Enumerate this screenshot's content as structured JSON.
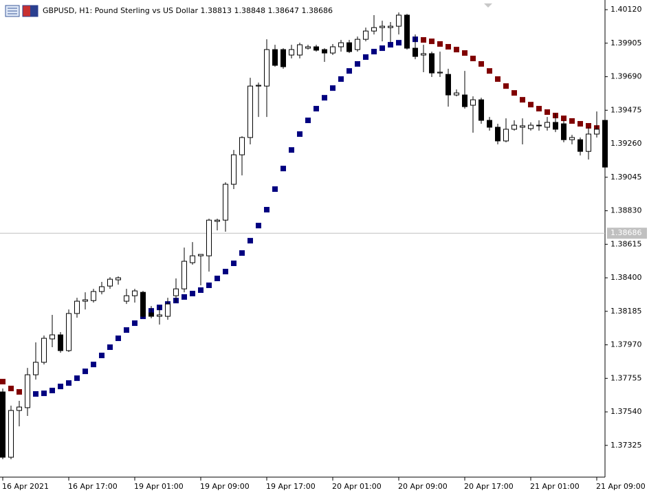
{
  "chart_data": {
    "type": "candlestick",
    "title": "GBPUSD, H1:  Pound Sterling vs US Dollar  1.38813 1.38848 1.38647 1.38686",
    "categories": [
      "16 Apr 2021",
      null,
      null,
      null,
      null,
      null,
      null,
      null,
      "16 Apr 17:00",
      null,
      null,
      null,
      null,
      null,
      null,
      null,
      "19 Apr 01:00",
      null,
      null,
      null,
      null,
      null,
      null,
      null,
      "19 Apr 09:00",
      null,
      null,
      null,
      null,
      null,
      null,
      null,
      "19 Apr 17:00",
      null,
      null,
      null,
      null,
      null,
      null,
      null,
      "20 Apr 01:00",
      null,
      null,
      null,
      null,
      null,
      null,
      null,
      "20 Apr 09:00",
      null,
      null,
      null,
      null,
      null,
      null,
      null,
      "20 Apr 17:00",
      null,
      null,
      null,
      null,
      null,
      null,
      null,
      "21 Apr 01:00",
      null,
      null,
      null,
      null,
      null,
      null,
      null,
      "21 Apr 09:00",
      null
    ],
    "open": [
      1.37668,
      1.37249,
      1.37549,
      1.37567,
      1.37778,
      1.37858,
      1.38008,
      1.38034,
      1.37933,
      1.38171,
      1.3825,
      1.38254,
      1.38312,
      1.38347,
      1.38387,
      1.3825,
      1.38285,
      1.38307,
      1.38175,
      1.38153,
      1.38153,
      1.38285,
      1.38329,
      1.38497,
      1.38541,
      1.38541,
      1.38762,
      1.3877,
      1.39,
      1.39189,
      1.393,
      1.3963,
      1.3963,
      1.39864,
      1.39864,
      1.39829,
      1.39829,
      1.39873,
      1.39882,
      1.39864,
      1.39842,
      1.39882,
      1.39908,
      1.39864,
      1.3993,
      1.39983,
      1.40005,
      1.40005,
      1.40014,
      1.40085,
      1.39873,
      1.39829,
      1.39838,
      1.39714,
      1.39705,
      1.39573,
      1.39573,
      1.39507,
      1.39542,
      1.3941,
      1.39366,
      1.39278,
      1.39353,
      1.39366,
      1.39357,
      1.39375,
      1.39366,
      1.39397,
      1.39388,
      1.39286,
      1.39286,
      1.39211,
      1.39322,
      1.3941
    ],
    "high": [
      1.3769,
      1.3758,
      1.37611,
      1.37822,
      1.37986,
      1.3803,
      1.38162,
      1.38052,
      1.38197,
      1.38272,
      1.38307,
      1.38329,
      1.38374,
      1.38404,
      1.38409,
      1.38329,
      1.38329,
      1.38316,
      1.38219,
      1.38219,
      1.38272,
      1.38396,
      1.38594,
      1.38629,
      1.3855,
      1.38779,
      1.38779,
      1.39013,
      1.3922,
      1.39308,
      1.39683,
      1.39652,
      1.3993,
      1.39895,
      1.39873,
      1.39895,
      1.39908,
      1.39895,
      1.39895,
      1.39873,
      1.399,
      1.39926,
      1.39926,
      1.39948,
      1.40005,
      1.40085,
      1.40049,
      1.40041,
      1.40102,
      1.40093,
      1.39961,
      1.39895,
      1.39851,
      1.39851,
      1.39741,
      1.39608,
      1.39727,
      1.39564,
      1.39555,
      1.39432,
      1.39388,
      1.39423,
      1.3941,
      1.39423,
      1.39397,
      1.3941,
      1.39432,
      1.39454,
      1.3941,
      1.39317,
      1.393,
      1.39366,
      1.39467,
      1.3941
    ],
    "low": [
      1.37236,
      1.37236,
      1.37447,
      1.37514,
      1.37747,
      1.37844,
      1.37955,
      1.37919,
      1.37924,
      1.38144,
      1.38197,
      1.38241,
      1.38294,
      1.38329,
      1.38356,
      1.38232,
      1.38241,
      1.38144,
      1.3814,
      1.381,
      1.38131,
      1.38241,
      1.38307,
      1.38484,
      1.38352,
      1.3844,
      1.38704,
      1.38696,
      1.38969,
      1.39057,
      1.39256,
      1.39432,
      1.39432,
      1.39754,
      1.39741,
      1.39807,
      1.39807,
      1.39864,
      1.39851,
      1.39785,
      1.39829,
      1.39851,
      1.39842,
      1.39851,
      1.39917,
      1.39961,
      1.39917,
      1.39908,
      1.39961,
      1.39864,
      1.39802,
      1.39719,
      1.39688,
      1.39688,
      1.39498,
      1.39564,
      1.39485,
      1.39331,
      1.39388,
      1.39344,
      1.39256,
      1.39269,
      1.39344,
      1.39256,
      1.39344,
      1.39344,
      1.39344,
      1.39335,
      1.39269,
      1.39256,
      1.39185,
      1.39159,
      1.393,
      1.3911
    ],
    "close": [
      1.37249,
      1.37549,
      1.37571,
      1.37778,
      1.37858,
      1.38012,
      1.38034,
      1.37933,
      1.38171,
      1.3825,
      1.38259,
      1.38312,
      1.38343,
      1.38391,
      1.384,
      1.38285,
      1.38316,
      1.38153,
      1.38153,
      1.38162,
      1.38232,
      1.38329,
      1.38506,
      1.38541,
      1.3855,
      1.3877,
      1.3877,
      1.39,
      1.39189,
      1.393,
      1.3963,
      1.39635,
      1.39864,
      1.39763,
      1.39754,
      1.39864,
      1.39895,
      1.39882,
      1.3986,
      1.39842,
      1.39882,
      1.39908,
      1.39851,
      1.3993,
      1.39983,
      1.40005,
      1.40014,
      1.40014,
      1.40085,
      1.39873,
      1.3982,
      1.39838,
      1.39714,
      1.39719,
      1.39573,
      1.39586,
      1.39498,
      1.39542,
      1.3941,
      1.39366,
      1.39278,
      1.39353,
      1.39379,
      1.39375,
      1.39379,
      1.39379,
      1.39397,
      1.39353,
      1.39286,
      1.393,
      1.39211,
      1.39322,
      1.39353,
      1.3911
    ],
    "up_color": "#ffffff",
    "down_color": "#000000",
    "indicator": {
      "values": [
        1.37734,
        1.3769,
        1.37668,
        1.37646,
        1.37655,
        1.37659,
        1.37677,
        1.37703,
        1.37725,
        1.37756,
        1.378,
        1.37844,
        1.37902,
        1.37955,
        1.38012,
        1.38065,
        1.38109,
        1.38153,
        1.38188,
        1.3821,
        1.38232,
        1.38254,
        1.38277,
        1.38299,
        1.38321,
        1.38352,
        1.38396,
        1.3844,
        1.38493,
        1.38559,
        1.38638,
        1.38735,
        1.38837,
        1.38969,
        1.39101,
        1.3922,
        1.39322,
        1.3941,
        1.39485,
        1.39555,
        1.39617,
        1.39675,
        1.39727,
        1.39772,
        1.39816,
        1.39851,
        1.39873,
        1.39895,
        1.39908,
        1.39926,
        1.3993,
        1.39926,
        1.39917,
        1.399,
        1.39882,
        1.39864,
        1.39842,
        1.39807,
        1.39772,
        1.39727,
        1.39675,
        1.3963,
        1.39586,
        1.39542,
        1.39511,
        1.39485,
        1.39463,
        1.39441,
        1.39423,
        1.39406,
        1.39388,
        1.39375,
        1.39361,
        1.39353
      ],
      "up_color": "#000080",
      "down_color": "#800000"
    },
    "last_price": 1.38686,
    "ylim": [
      1.37139,
      1.4016
    ],
    "yticks": [
      {
        "value": 1.4012,
        "label": "1.40120"
      },
      1.39905,
      {
        "value": 1.3969,
        "label": "1.39690"
      },
      1.39475,
      {
        "value": 1.3926,
        "label": "1.39260"
      },
      1.39045,
      {
        "value": 1.3883,
        "label": "1.38830"
      },
      1.38615,
      {
        "value": 1.384,
        "label": "1.38400"
      },
      1.38185,
      {
        "value": 1.3797,
        "label": "1.37970"
      },
      1.37755,
      {
        "value": 1.3754,
        "label": "1.37540"
      },
      1.37325
    ]
  }
}
